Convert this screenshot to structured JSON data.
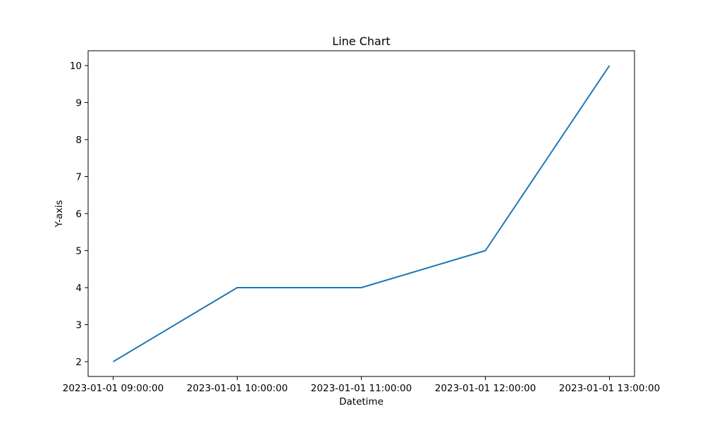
{
  "chart_data": {
    "type": "line",
    "title": "Line Chart",
    "xlabel": "Datetime",
    "ylabel": "Y-axis",
    "x": [
      "2023-01-01 09:00:00",
      "2023-01-01 10:00:00",
      "2023-01-01 11:00:00",
      "2023-01-01 12:00:00",
      "2023-01-01 13:00:00"
    ],
    "series": [
      {
        "name": "Y-axis",
        "values": [
          2,
          4,
          4,
          5,
          10
        ],
        "color": "#1f77b4"
      }
    ],
    "yticks": [
      2,
      3,
      4,
      5,
      6,
      7,
      8,
      9,
      10
    ],
    "ylim": [
      1.6,
      10.4
    ],
    "grid": false,
    "legend": "none"
  }
}
